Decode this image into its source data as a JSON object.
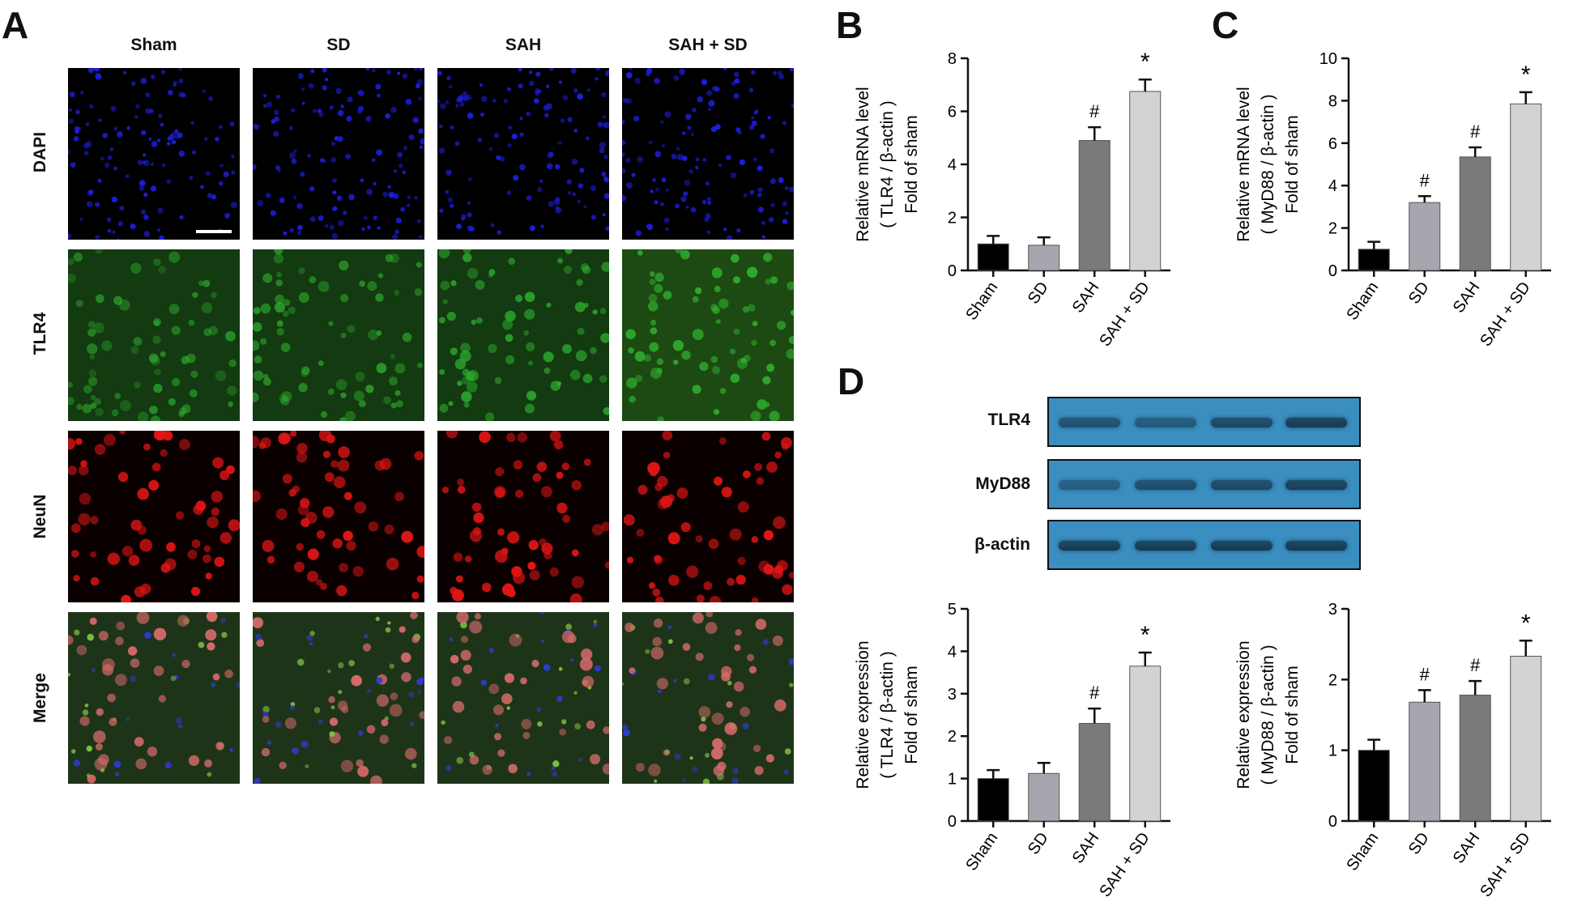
{
  "panels": {
    "A": "A",
    "B": "B",
    "C": "C",
    "D": "D"
  },
  "panel_a": {
    "columns": [
      "Sham",
      "SD",
      "SAH",
      "SAH + SD"
    ],
    "rows": [
      "DAPI",
      "TLR4",
      "NeuN",
      "Merge"
    ],
    "stain_colors": {
      "DAPI": "#1d1ddc",
      "TLR4": "#2fae2f",
      "NeuN": "#e01515",
      "Merge": "#c86a5a"
    }
  },
  "blot": {
    "labels": [
      "TLR4",
      "MyD88",
      "β-actin"
    ],
    "membrane_color": "#3a8fc0"
  },
  "chart_data": [
    {
      "id": "B",
      "type": "bar",
      "categories": [
        "Sham",
        "SD",
        "SAH",
        "SAH + SD"
      ],
      "values": [
        1.0,
        0.95,
        4.9,
        6.75
      ],
      "errors": [
        0.3,
        0.3,
        0.5,
        0.45
      ],
      "marks": [
        "",
        "",
        "#",
        "*"
      ],
      "colors": [
        "#000000",
        "#a6a6ae",
        "#7a7a7a",
        "#d3d3d3"
      ],
      "ylabel": [
        "Relative mRNA level",
        "( TLR4 / β-actin )",
        "Fold of sham"
      ],
      "ylim": [
        0,
        8
      ],
      "yticks": [
        0,
        2,
        4,
        6,
        8
      ]
    },
    {
      "id": "C",
      "type": "bar",
      "categories": [
        "Sham",
        "SD",
        "SAH",
        "SAH + SD"
      ],
      "values": [
        1.0,
        3.2,
        5.35,
        7.85
      ],
      "errors": [
        0.35,
        0.3,
        0.45,
        0.55
      ],
      "marks": [
        "",
        "#",
        "#",
        "*"
      ],
      "colors": [
        "#000000",
        "#a6a6ae",
        "#7a7a7a",
        "#d3d3d3"
      ],
      "ylabel": [
        "Relative mRNA level",
        "( MyD88 / β-actin )",
        "Fold of sham"
      ],
      "ylim": [
        0,
        10
      ],
      "yticks": [
        0,
        2,
        4,
        6,
        8,
        10
      ]
    },
    {
      "id": "D-left",
      "type": "bar",
      "categories": [
        "Sham",
        "SD",
        "SAH",
        "SAH + SD"
      ],
      "values": [
        1.0,
        1.12,
        2.3,
        3.65
      ],
      "errors": [
        0.2,
        0.25,
        0.35,
        0.32
      ],
      "marks": [
        "",
        "",
        "#",
        "*"
      ],
      "colors": [
        "#000000",
        "#a6a6ae",
        "#7a7a7a",
        "#d3d3d3"
      ],
      "ylabel": [
        "Relative expression",
        "( TLR4 / β-actin )",
        "Fold of sham"
      ],
      "ylim": [
        0,
        5
      ],
      "yticks": [
        0,
        1,
        2,
        3,
        4,
        5
      ]
    },
    {
      "id": "D-right",
      "type": "bar",
      "categories": [
        "Sham",
        "SD",
        "SAH",
        "SAH + SD"
      ],
      "values": [
        1.0,
        1.68,
        1.78,
        2.33
      ],
      "errors": [
        0.15,
        0.17,
        0.2,
        0.22
      ],
      "marks": [
        "",
        "#",
        "#",
        "*"
      ],
      "colors": [
        "#000000",
        "#a6a6ae",
        "#7a7a7a",
        "#d3d3d3"
      ],
      "ylabel": [
        "Relative expression",
        "( MyD88 / β-actin )",
        "Fold of sham"
      ],
      "ylim": [
        0,
        3
      ],
      "yticks": [
        0,
        1,
        2,
        3
      ]
    }
  ]
}
